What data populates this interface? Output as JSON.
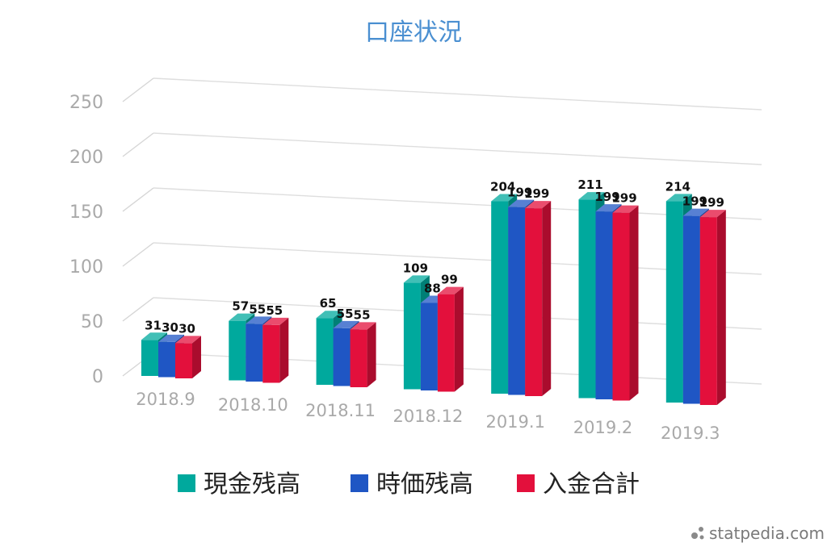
{
  "chart_data": {
    "type": "bar",
    "title": "口座状況",
    "categories": [
      "2018.9",
      "2018.10",
      "2018.11",
      "2018.12",
      "2019.1",
      "2019.2",
      "2019.3"
    ],
    "series": [
      {
        "name": "現金残高",
        "color": "#00a99d",
        "values": [
          31,
          57,
          65,
          109,
          204,
          211,
          214
        ]
      },
      {
        "name": "時価残高",
        "color": "#1f56c4",
        "values": [
          30,
          55,
          55,
          88,
          199,
          199,
          199
        ]
      },
      {
        "name": "入金合計",
        "color": "#e3103c",
        "values": [
          30,
          55,
          55,
          99,
          199,
          199,
          199
        ]
      }
    ],
    "y_ticks": [
      "0",
      "50",
      "100",
      "150",
      "200",
      "250"
    ],
    "ylim": [
      0,
      250
    ],
    "grid": true,
    "legend_position": "bottom",
    "three_d": true
  },
  "watermark": "statpedia.com"
}
